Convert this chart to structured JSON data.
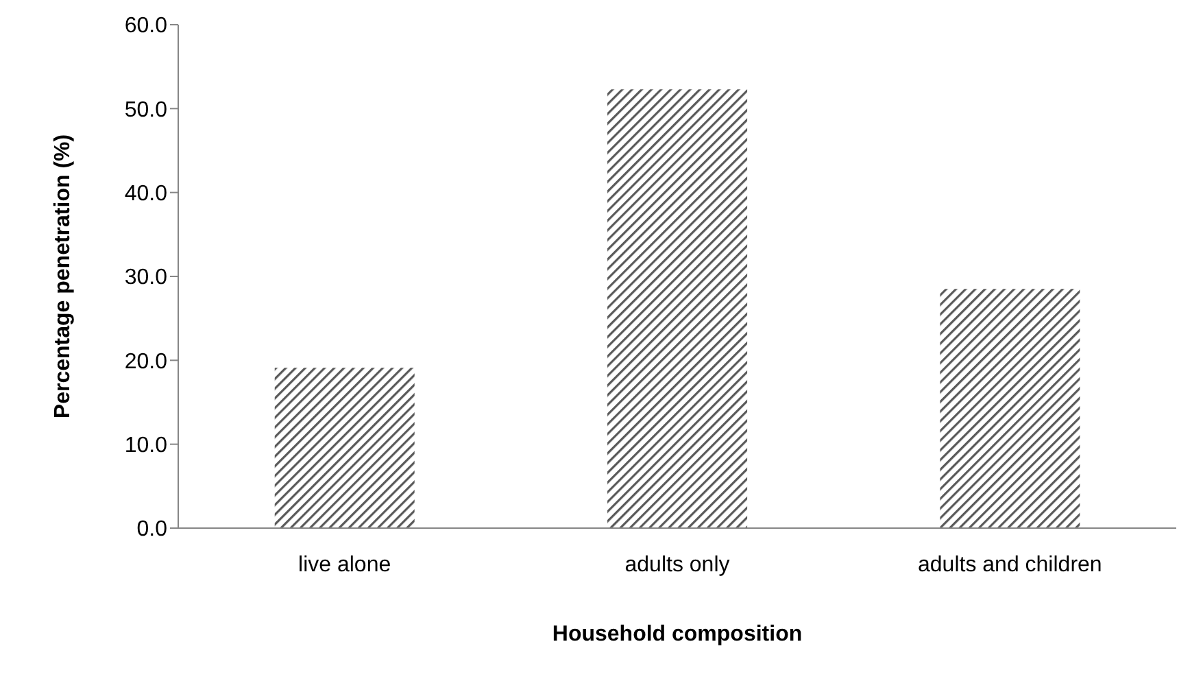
{
  "chart_data": {
    "type": "bar",
    "xlabel": "Household composition",
    "ylabel": "Percentage penetration (%)",
    "categories": [
      "live alone",
      "adults only",
      "adults and children"
    ],
    "values": [
      19.1,
      52.3,
      28.5
    ],
    "color": "#595959",
    "ylim": [
      0,
      60
    ],
    "yticks": [
      {
        "value": 0,
        "label": "0.0"
      },
      {
        "value": 10,
        "label": "10.0"
      },
      {
        "value": 20,
        "label": "20.0"
      },
      {
        "value": 30,
        "label": "30.0"
      },
      {
        "value": 40,
        "label": "40.0"
      },
      {
        "value": 50,
        "label": "50.0"
      },
      {
        "value": 60,
        "label": "60.0"
      }
    ],
    "grid": false,
    "legend": false
  }
}
